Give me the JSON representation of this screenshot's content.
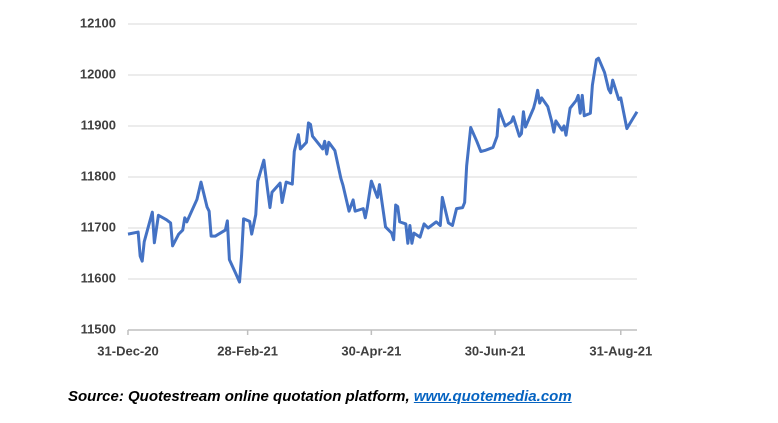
{
  "chart_data": {
    "type": "line",
    "x": [
      "2020-12-31",
      "2021-01-05",
      "2021-01-06",
      "2021-01-07",
      "2021-01-08",
      "2021-01-12",
      "2021-01-13",
      "2021-01-15",
      "2021-01-19",
      "2021-01-21",
      "2021-01-22",
      "2021-01-25",
      "2021-01-27",
      "2021-01-28",
      "2021-01-29",
      "2021-02-03",
      "2021-02-05",
      "2021-02-08",
      "2021-02-09",
      "2021-02-10",
      "2021-02-12",
      "2021-02-17",
      "2021-02-18",
      "2021-02-19",
      "2021-02-22",
      "2021-02-24",
      "2021-02-25",
      "2021-02-26",
      "2021-03-01",
      "2021-03-02",
      "2021-03-04",
      "2021-03-05",
      "2021-03-08",
      "2021-03-10",
      "2021-03-11",
      "2021-03-12",
      "2021-03-16",
      "2021-03-17",
      "2021-03-19",
      "2021-03-22",
      "2021-03-23",
      "2021-03-25",
      "2021-03-26",
      "2021-03-29",
      "2021-03-30",
      "2021-03-31",
      "2021-04-01",
      "2021-04-06",
      "2021-04-07",
      "2021-04-08",
      "2021-04-09",
      "2021-04-12",
      "2021-04-15",
      "2021-04-16",
      "2021-04-19",
      "2021-04-21",
      "2021-04-22",
      "2021-04-26",
      "2021-04-27",
      "2021-04-28",
      "2021-04-30",
      "2021-05-03",
      "2021-05-04",
      "2021-05-07",
      "2021-05-10",
      "2021-05-11",
      "2021-05-12",
      "2021-05-13",
      "2021-05-14",
      "2021-05-17",
      "2021-05-18",
      "2021-05-19",
      "2021-05-20",
      "2021-05-21",
      "2021-05-24",
      "2021-05-26",
      "2021-05-28",
      "2021-06-01",
      "2021-06-03",
      "2021-06-04",
      "2021-06-07",
      "2021-06-09",
      "2021-06-11",
      "2021-06-14",
      "2021-06-15",
      "2021-06-16",
      "2021-06-18",
      "2021-06-21",
      "2021-06-23",
      "2021-06-25",
      "2021-06-29",
      "2021-07-01",
      "2021-07-02",
      "2021-07-05",
      "2021-07-08",
      "2021-07-09",
      "2021-07-12",
      "2021-07-13",
      "2021-07-14",
      "2021-07-15",
      "2021-07-19",
      "2021-07-20",
      "2021-07-21",
      "2021-07-22",
      "2021-07-23",
      "2021-07-26",
      "2021-07-28",
      "2021-07-29",
      "2021-07-30",
      "2021-08-02",
      "2021-08-03",
      "2021-08-04",
      "2021-08-06",
      "2021-08-09",
      "2021-08-10",
      "2021-08-11",
      "2021-08-12",
      "2021-08-13",
      "2021-08-16",
      "2021-08-17",
      "2021-08-19",
      "2021-08-20",
      "2021-08-23",
      "2021-08-25",
      "2021-08-26",
      "2021-08-27",
      "2021-08-30",
      "2021-08-31",
      "2021-09-03",
      "2021-09-08"
    ],
    "series": [
      {
        "color": "#4472c4",
        "values": [
          11688,
          11692,
          11645,
          11635,
          11673,
          11731,
          11671,
          11725,
          11716,
          11710,
          11665,
          11688,
          11696,
          11720,
          11712,
          11756,
          11790,
          11741,
          11733,
          11684,
          11684,
          11696,
          11714,
          11638,
          11612,
          11594,
          11645,
          11718,
          11713,
          11688,
          11726,
          11792,
          11833,
          11770,
          11740,
          11770,
          11788,
          11750,
          11790,
          11786,
          11850,
          11883,
          11855,
          11868,
          11906,
          11903,
          11880,
          11855,
          11870,
          11845,
          11868,
          11852,
          11797,
          11784,
          11733,
          11755,
          11733,
          11738,
          11720,
          11740,
          11792,
          11760,
          11785,
          11702,
          11690,
          11677,
          11745,
          11742,
          11712,
          11708,
          11670,
          11705,
          11670,
          11690,
          11682,
          11708,
          11700,
          11712,
          11705,
          11760,
          11710,
          11705,
          11738,
          11740,
          11750,
          11822,
          11897,
          11870,
          11850,
          11852,
          11858,
          11880,
          11932,
          11900,
          11908,
          11918,
          11880,
          11885,
          11928,
          11898,
          11935,
          11950,
          11970,
          11945,
          11955,
          11938,
          11908,
          11888,
          11910,
          11892,
          11900,
          11882,
          11935,
          11950,
          11960,
          11925,
          11960,
          11920,
          11925,
          11980,
          12030,
          12033,
          12005,
          11972,
          11965,
          11990,
          11952,
          11955,
          11895,
          11928
        ]
      }
    ],
    "xlim": [
      "2020-12-31",
      "2021-09-08"
    ],
    "xticks": [
      {
        "value": "2020-12-31",
        "label": "31-Dec-20"
      },
      {
        "value": "2021-02-28",
        "label": "28-Feb-21"
      },
      {
        "value": "2021-04-30",
        "label": "30-Apr-21"
      },
      {
        "value": "2021-06-30",
        "label": "30-Jun-21"
      },
      {
        "value": "2021-08-31",
        "label": "31-Aug-21"
      }
    ],
    "ylim": [
      11500,
      12100
    ],
    "yticks": [
      11500,
      11600,
      11700,
      11800,
      11900,
      12000,
      12100
    ],
    "grid": true
  },
  "source": "Source: Quotestream online quotation platform, ",
  "source_link": "www.quotemedia.com"
}
